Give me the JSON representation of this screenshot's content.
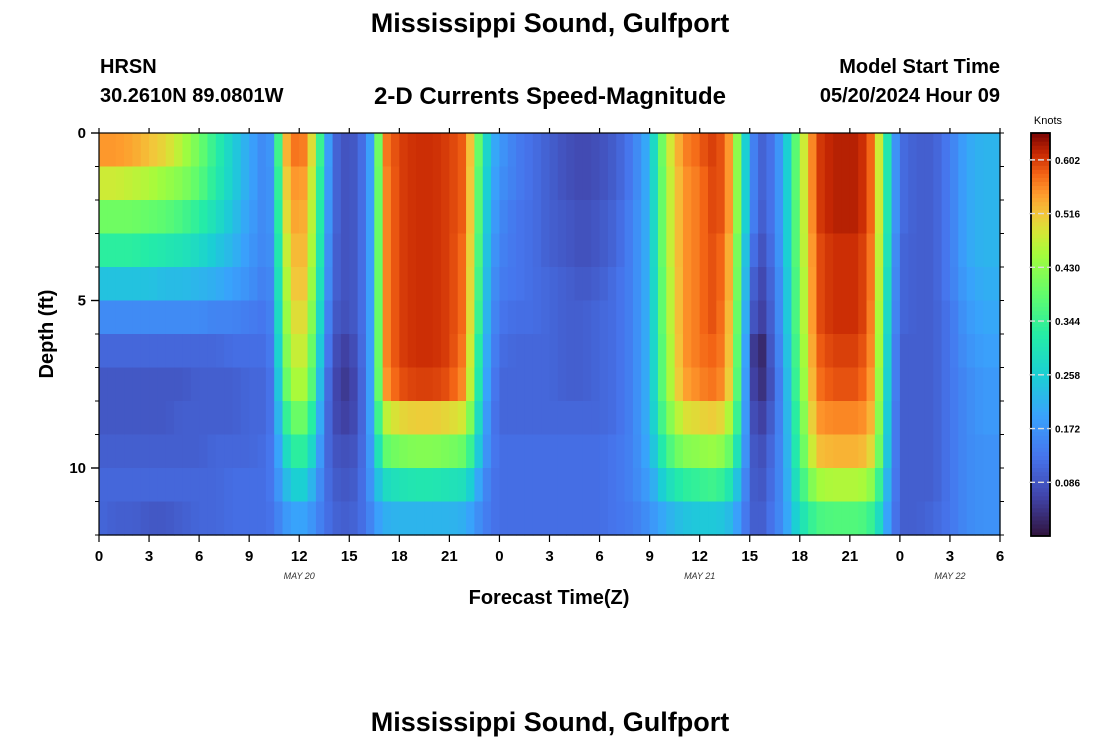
{
  "header": {
    "title": "Mississippi Sound, Gulfport",
    "station": "HRSN",
    "coordinates": "30.2610N  89.0801W",
    "subtitle": "2-D Currents Speed-Magnitude",
    "model_start_label": "Model Start Time",
    "model_start_value": "05/20/2024 Hour 09",
    "repeat_title": "Mississippi Sound, Gulfport"
  },
  "chart_data": {
    "type": "heatmap",
    "title": "2-D Currents Speed-Magnitude",
    "xlabel": "Forecast Time(Z)",
    "ylabel": "Depth (ft)",
    "x_tick_labels": [
      "0",
      "3",
      "6",
      "9",
      "12",
      "15",
      "18",
      "21",
      "0",
      "3",
      "6",
      "9",
      "12",
      "15",
      "18",
      "21",
      "0",
      "3",
      "6"
    ],
    "x_range_hours": [
      0,
      54
    ],
    "x_ticks_every_hours": 3,
    "y_tick_labels": [
      "0",
      "5",
      "10"
    ],
    "y_ticks": [
      0,
      5,
      10
    ],
    "y_range_ft": [
      0,
      12
    ],
    "y_reversed": true,
    "depth_rows_ft": [
      0.5,
      1.5,
      2.5,
      3.5,
      4.5,
      5.5,
      6.5,
      7.5,
      8.5,
      9.5,
      10.5,
      11.5
    ],
    "date_labels": [
      {
        "text": "MAY 20",
        "hour": 12
      },
      {
        "text": "MAY 21",
        "hour": 36
      },
      {
        "text": "MAY 22",
        "hour": 51
      }
    ],
    "colorbar": {
      "units": "Knots",
      "min": 0.0,
      "max": 0.645,
      "tick_labels": [
        "0.602",
        "0.516",
        "0.430",
        "0.344",
        "0.258",
        "0.172",
        "0.086"
      ],
      "colormap": "turbo"
    },
    "key_times_hours": [
      0,
      1,
      2,
      3,
      4,
      5,
      6,
      7,
      8,
      9,
      10,
      10.5,
      11,
      11.5,
      12,
      12.5,
      13,
      13.5,
      14,
      14.5,
      15,
      15.5,
      16,
      16.5,
      17,
      18,
      19,
      20,
      21,
      22,
      22.5,
      23,
      23.5,
      24,
      25,
      26,
      27,
      28,
      29,
      30,
      31,
      32,
      33,
      34,
      35,
      36,
      36.5,
      37,
      37.5,
      38,
      38.5,
      39,
      39.5,
      40,
      41,
      42,
      43,
      44,
      45,
      45.5,
      46,
      46.5,
      47,
      47.5,
      48,
      49,
      50,
      51,
      52,
      53,
      54
    ],
    "speed_knots_by_depth": [
      [
        0.55,
        0.55,
        0.54,
        0.52,
        0.5,
        0.46,
        0.4,
        0.33,
        0.26,
        0.2,
        0.15,
        0.2,
        0.5,
        0.56,
        0.58,
        0.55,
        0.44,
        0.25,
        0.12,
        0.09,
        0.08,
        0.1,
        0.14,
        0.24,
        0.56,
        0.6,
        0.61,
        0.61,
        0.6,
        0.58,
        0.46,
        0.32,
        0.22,
        0.18,
        0.14,
        0.12,
        0.1,
        0.08,
        0.07,
        0.08,
        0.1,
        0.14,
        0.22,
        0.46,
        0.56,
        0.58,
        0.6,
        0.6,
        0.58,
        0.52,
        0.34,
        0.18,
        0.11,
        0.1,
        0.2,
        0.44,
        0.6,
        0.62,
        0.62,
        0.62,
        0.6,
        0.56,
        0.4,
        0.22,
        0.12,
        0.1,
        0.1,
        0.14,
        0.2,
        0.22,
        0.22
      ],
      [
        0.48,
        0.48,
        0.47,
        0.46,
        0.44,
        0.42,
        0.38,
        0.32,
        0.26,
        0.2,
        0.15,
        0.19,
        0.48,
        0.54,
        0.56,
        0.53,
        0.42,
        0.24,
        0.12,
        0.09,
        0.08,
        0.1,
        0.14,
        0.24,
        0.55,
        0.6,
        0.61,
        0.61,
        0.6,
        0.58,
        0.45,
        0.31,
        0.21,
        0.17,
        0.14,
        0.12,
        0.1,
        0.08,
        0.07,
        0.08,
        0.1,
        0.14,
        0.22,
        0.45,
        0.55,
        0.57,
        0.59,
        0.6,
        0.58,
        0.52,
        0.34,
        0.18,
        0.11,
        0.1,
        0.2,
        0.44,
        0.6,
        0.62,
        0.62,
        0.62,
        0.6,
        0.56,
        0.4,
        0.22,
        0.12,
        0.1,
        0.1,
        0.14,
        0.2,
        0.22,
        0.22
      ],
      [
        0.4,
        0.4,
        0.4,
        0.39,
        0.38,
        0.36,
        0.33,
        0.29,
        0.24,
        0.19,
        0.15,
        0.19,
        0.46,
        0.53,
        0.55,
        0.52,
        0.41,
        0.23,
        0.12,
        0.09,
        0.08,
        0.1,
        0.14,
        0.24,
        0.55,
        0.6,
        0.61,
        0.61,
        0.6,
        0.58,
        0.45,
        0.3,
        0.2,
        0.16,
        0.13,
        0.12,
        0.1,
        0.09,
        0.08,
        0.09,
        0.11,
        0.15,
        0.22,
        0.45,
        0.55,
        0.57,
        0.59,
        0.6,
        0.58,
        0.52,
        0.34,
        0.18,
        0.1,
        0.1,
        0.2,
        0.43,
        0.6,
        0.62,
        0.62,
        0.62,
        0.6,
        0.56,
        0.4,
        0.22,
        0.12,
        0.1,
        0.1,
        0.14,
        0.2,
        0.22,
        0.22
      ],
      [
        0.33,
        0.33,
        0.33,
        0.32,
        0.31,
        0.3,
        0.28,
        0.25,
        0.22,
        0.18,
        0.15,
        0.18,
        0.44,
        0.51,
        0.54,
        0.51,
        0.4,
        0.22,
        0.11,
        0.09,
        0.08,
        0.1,
        0.14,
        0.24,
        0.55,
        0.6,
        0.61,
        0.61,
        0.6,
        0.57,
        0.44,
        0.29,
        0.19,
        0.15,
        0.13,
        0.12,
        0.1,
        0.09,
        0.08,
        0.09,
        0.11,
        0.15,
        0.22,
        0.45,
        0.55,
        0.57,
        0.59,
        0.59,
        0.57,
        0.5,
        0.32,
        0.16,
        0.08,
        0.09,
        0.2,
        0.43,
        0.59,
        0.61,
        0.61,
        0.61,
        0.59,
        0.55,
        0.39,
        0.21,
        0.11,
        0.1,
        0.1,
        0.14,
        0.2,
        0.22,
        0.22
      ],
      [
        0.24,
        0.24,
        0.24,
        0.24,
        0.23,
        0.23,
        0.22,
        0.21,
        0.19,
        0.17,
        0.14,
        0.17,
        0.42,
        0.5,
        0.53,
        0.5,
        0.38,
        0.21,
        0.11,
        0.09,
        0.08,
        0.1,
        0.14,
        0.24,
        0.55,
        0.6,
        0.61,
        0.61,
        0.6,
        0.57,
        0.43,
        0.28,
        0.18,
        0.14,
        0.13,
        0.12,
        0.11,
        0.1,
        0.09,
        0.1,
        0.12,
        0.15,
        0.22,
        0.44,
        0.55,
        0.57,
        0.59,
        0.59,
        0.57,
        0.5,
        0.31,
        0.14,
        0.06,
        0.08,
        0.19,
        0.42,
        0.59,
        0.61,
        0.61,
        0.61,
        0.59,
        0.55,
        0.38,
        0.2,
        0.11,
        0.1,
        0.1,
        0.14,
        0.19,
        0.21,
        0.21
      ],
      [
        0.16,
        0.16,
        0.16,
        0.16,
        0.16,
        0.16,
        0.16,
        0.15,
        0.15,
        0.14,
        0.13,
        0.16,
        0.4,
        0.48,
        0.51,
        0.48,
        0.36,
        0.19,
        0.1,
        0.08,
        0.08,
        0.1,
        0.14,
        0.24,
        0.55,
        0.6,
        0.61,
        0.61,
        0.6,
        0.57,
        0.42,
        0.27,
        0.17,
        0.13,
        0.12,
        0.12,
        0.11,
        0.1,
        0.1,
        0.11,
        0.12,
        0.15,
        0.22,
        0.44,
        0.55,
        0.57,
        0.59,
        0.59,
        0.56,
        0.49,
        0.3,
        0.12,
        0.05,
        0.07,
        0.19,
        0.42,
        0.59,
        0.61,
        0.61,
        0.61,
        0.59,
        0.54,
        0.37,
        0.19,
        0.11,
        0.1,
        0.1,
        0.13,
        0.18,
        0.2,
        0.2
      ],
      [
        0.11,
        0.11,
        0.11,
        0.11,
        0.11,
        0.11,
        0.11,
        0.11,
        0.12,
        0.12,
        0.12,
        0.15,
        0.38,
        0.46,
        0.49,
        0.46,
        0.33,
        0.17,
        0.09,
        0.06,
        0.06,
        0.09,
        0.14,
        0.24,
        0.55,
        0.6,
        0.61,
        0.61,
        0.6,
        0.56,
        0.4,
        0.25,
        0.16,
        0.12,
        0.11,
        0.11,
        0.11,
        0.1,
        0.1,
        0.11,
        0.12,
        0.15,
        0.22,
        0.43,
        0.55,
        0.57,
        0.58,
        0.58,
        0.56,
        0.48,
        0.29,
        0.1,
        0.0,
        0.06,
        0.18,
        0.41,
        0.58,
        0.6,
        0.6,
        0.6,
        0.58,
        0.54,
        0.36,
        0.18,
        0.1,
        0.1,
        0.1,
        0.13,
        0.17,
        0.19,
        0.19
      ],
      [
        0.09,
        0.09,
        0.09,
        0.09,
        0.09,
        0.09,
        0.1,
        0.1,
        0.1,
        0.11,
        0.11,
        0.14,
        0.35,
        0.44,
        0.47,
        0.44,
        0.31,
        0.15,
        0.08,
        0.05,
        0.05,
        0.08,
        0.14,
        0.24,
        0.54,
        0.59,
        0.6,
        0.6,
        0.59,
        0.55,
        0.39,
        0.24,
        0.15,
        0.11,
        0.11,
        0.11,
        0.11,
        0.1,
        0.1,
        0.11,
        0.12,
        0.15,
        0.22,
        0.43,
        0.54,
        0.56,
        0.57,
        0.57,
        0.55,
        0.47,
        0.28,
        0.09,
        0.03,
        0.05,
        0.17,
        0.4,
        0.57,
        0.59,
        0.59,
        0.59,
        0.57,
        0.53,
        0.35,
        0.18,
        0.1,
        0.1,
        0.1,
        0.13,
        0.16,
        0.18,
        0.18
      ],
      [
        0.09,
        0.09,
        0.09,
        0.09,
        0.09,
        0.1,
        0.1,
        0.1,
        0.1,
        0.11,
        0.11,
        0.14,
        0.3,
        0.38,
        0.41,
        0.38,
        0.27,
        0.14,
        0.08,
        0.06,
        0.06,
        0.08,
        0.14,
        0.24,
        0.46,
        0.5,
        0.51,
        0.51,
        0.5,
        0.48,
        0.35,
        0.22,
        0.14,
        0.11,
        0.11,
        0.11,
        0.11,
        0.11,
        0.11,
        0.11,
        0.12,
        0.15,
        0.22,
        0.4,
        0.49,
        0.5,
        0.51,
        0.51,
        0.49,
        0.43,
        0.26,
        0.1,
        0.05,
        0.07,
        0.17,
        0.38,
        0.55,
        0.56,
        0.56,
        0.56,
        0.55,
        0.51,
        0.34,
        0.17,
        0.1,
        0.1,
        0.1,
        0.13,
        0.16,
        0.18,
        0.18
      ],
      [
        0.1,
        0.1,
        0.1,
        0.1,
        0.1,
        0.1,
        0.1,
        0.11,
        0.11,
        0.11,
        0.12,
        0.14,
        0.25,
        0.32,
        0.34,
        0.32,
        0.23,
        0.13,
        0.09,
        0.08,
        0.08,
        0.09,
        0.14,
        0.22,
        0.38,
        0.41,
        0.42,
        0.42,
        0.41,
        0.39,
        0.3,
        0.2,
        0.14,
        0.12,
        0.12,
        0.12,
        0.12,
        0.12,
        0.12,
        0.12,
        0.13,
        0.15,
        0.21,
        0.35,
        0.42,
        0.43,
        0.44,
        0.44,
        0.42,
        0.37,
        0.23,
        0.11,
        0.07,
        0.09,
        0.17,
        0.36,
        0.52,
        0.53,
        0.53,
        0.53,
        0.52,
        0.48,
        0.32,
        0.17,
        0.1,
        0.1,
        0.1,
        0.13,
        0.16,
        0.17,
        0.17
      ],
      [
        0.11,
        0.11,
        0.11,
        0.11,
        0.11,
        0.11,
        0.11,
        0.11,
        0.12,
        0.12,
        0.12,
        0.14,
        0.21,
        0.25,
        0.27,
        0.25,
        0.19,
        0.13,
        0.1,
        0.09,
        0.09,
        0.1,
        0.14,
        0.2,
        0.28,
        0.3,
        0.31,
        0.31,
        0.3,
        0.29,
        0.23,
        0.17,
        0.13,
        0.12,
        0.12,
        0.12,
        0.12,
        0.12,
        0.12,
        0.12,
        0.13,
        0.15,
        0.19,
        0.28,
        0.33,
        0.34,
        0.35,
        0.35,
        0.33,
        0.29,
        0.19,
        0.11,
        0.08,
        0.1,
        0.17,
        0.33,
        0.45,
        0.46,
        0.46,
        0.46,
        0.45,
        0.41,
        0.28,
        0.16,
        0.1,
        0.1,
        0.1,
        0.13,
        0.16,
        0.17,
        0.17
      ],
      [
        0.11,
        0.1,
        0.1,
        0.09,
        0.09,
        0.1,
        0.11,
        0.11,
        0.12,
        0.12,
        0.12,
        0.13,
        0.17,
        0.19,
        0.2,
        0.19,
        0.16,
        0.13,
        0.11,
        0.1,
        0.1,
        0.11,
        0.13,
        0.17,
        0.21,
        0.22,
        0.22,
        0.22,
        0.22,
        0.21,
        0.18,
        0.15,
        0.13,
        0.12,
        0.12,
        0.12,
        0.12,
        0.12,
        0.12,
        0.12,
        0.13,
        0.14,
        0.17,
        0.21,
        0.24,
        0.25,
        0.25,
        0.25,
        0.24,
        0.22,
        0.16,
        0.11,
        0.09,
        0.11,
        0.17,
        0.29,
        0.36,
        0.37,
        0.37,
        0.37,
        0.36,
        0.33,
        0.24,
        0.15,
        0.1,
        0.1,
        0.11,
        0.13,
        0.16,
        0.17,
        0.17
      ]
    ],
    "grid": false,
    "legend": "right-colorbar"
  }
}
